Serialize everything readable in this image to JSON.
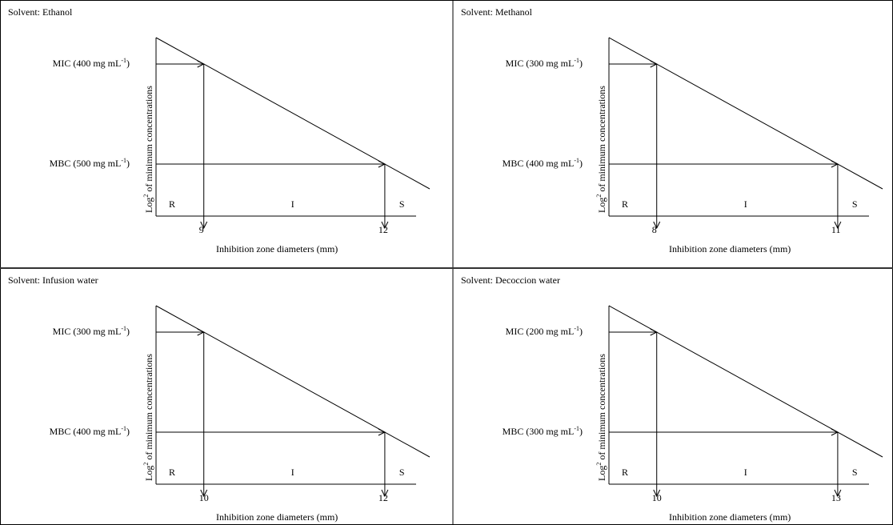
{
  "figure": {
    "y_axis_label_prefix": "Log",
    "y_axis_label_sup": "2",
    "y_axis_label_suffix": " of minimum concentrations",
    "x_axis_label": "Inhibition zone diameters (mm)",
    "regions": [
      "R",
      "I",
      "S"
    ],
    "panels": [
      {
        "solvent": "Solvent: Ethanol",
        "mic_label": "MIC (400 mg mL",
        "mbc_label": "MBC (500 mg mL",
        "unit_sup": "-1",
        "tick_left": "9",
        "tick_right": "12"
      },
      {
        "solvent": "Solvent: Methanol",
        "mic_label": "MIC (300 mg mL",
        "mbc_label": "MBC (400 mg mL",
        "unit_sup": "-1",
        "tick_left": "8",
        "tick_right": "11"
      },
      {
        "solvent": "Solvent: Infusion water",
        "mic_label": "MIC (300 mg mL",
        "mbc_label": "MBC (400 mg mL",
        "unit_sup": "-1",
        "tick_left": "10",
        "tick_right": "12"
      },
      {
        "solvent": "Solvent: Decoccion water",
        "mic_label": "MIC (200 mg mL",
        "mbc_label": "MBC (300 mg mL",
        "unit_sup": "-1",
        "tick_left": "10",
        "tick_right": "13"
      }
    ]
  }
}
